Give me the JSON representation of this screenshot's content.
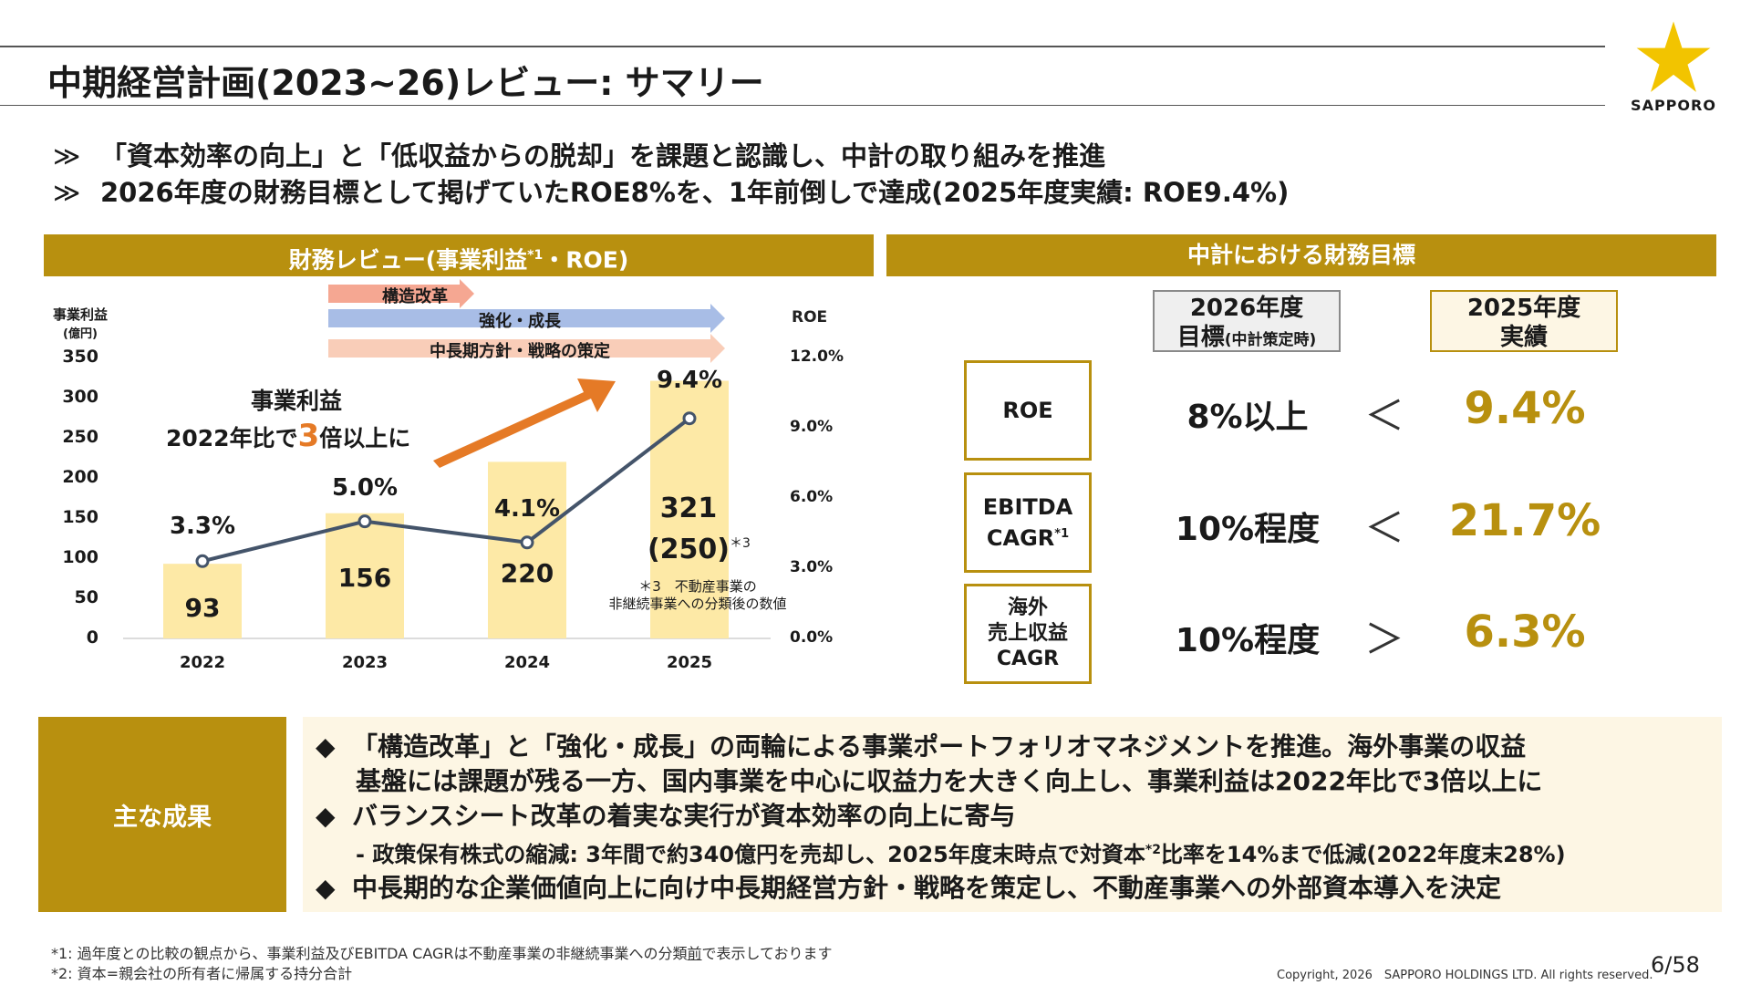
{
  "title": "中期経営計画(2023~26)レビュー: サマリー",
  "logo": {
    "text": "SAPPORO",
    "star_color": "#f2c400"
  },
  "bullets": [
    {
      "mark": "≫",
      "text": "「資本効率の向上」と「低収益からの脱却」を課題と認識し、中計の取り組みを推進"
    },
    {
      "mark": "≫",
      "text": "2026年度の財務目標として掲げていたROE8%を、1年前倒しで達成(2025年度実績: ROE9.4%)"
    }
  ],
  "left_panel": {
    "header_main": "財務レビュー(事業利益",
    "header_sup": "*1",
    "header_tail": "・ROE)",
    "left_axis_title_1": "事業利益",
    "left_axis_title_2": "(億円)",
    "right_axis_title": "ROE",
    "arrows": [
      "構造改革",
      "強化・成長",
      "中長期方針・戦略の策定"
    ],
    "callout_line1": "事業利益",
    "callout_pre": "2022年比で",
    "callout_num": "3",
    "callout_post": "倍以上に",
    "bar_2025_line1": "321",
    "bar_2025_line2": "(250)",
    "bar_2025_note_mark": "＊3",
    "note_line1": "＊3　不動産事業の",
    "note_line2": "非継続事業への分類後の数値"
  },
  "chart_data": {
    "type": "bar",
    "categories": [
      "2022",
      "2023",
      "2024",
      "2025"
    ],
    "series": [
      {
        "name": "事業利益",
        "values": [
          93,
          156,
          220,
          321
        ]
      },
      {
        "name": "ROE",
        "values": [
          3.3,
          5.0,
          4.1,
          9.4
        ]
      }
    ],
    "ylabel": "事業利益 (億円)",
    "y2label": "ROE",
    "ylim": [
      0,
      350
    ],
    "y_ticks": [
      "350",
      "300",
      "250",
      "200",
      "150",
      "100",
      "50",
      "0"
    ],
    "y2lim": [
      0,
      12
    ],
    "y2_ticks": [
      "12.0%",
      "9.0%",
      "6.0%",
      "3.0%",
      "0.0%"
    ],
    "bar_labels": [
      "93",
      "156",
      "220"
    ],
    "roe_labels": [
      "3.3%",
      "5.0%",
      "4.1%",
      "9.4%"
    ],
    "colors": {
      "bar": "#fde9a6",
      "line": "#44546a"
    }
  },
  "right_panel": {
    "header": "中計における財務目標",
    "col1_line1": "2026年度",
    "col1_line2_main": "目標",
    "col1_line2_small": "(中計策定時)",
    "col2_line1": "2025年度",
    "col2_line2": "実績",
    "rows": [
      {
        "metric_l1": "ROE",
        "metric_l2": "",
        "metric_l3": "",
        "target": "8%以上",
        "compare": "＜",
        "actual": "9.4%"
      },
      {
        "metric_l1": "EBITDA",
        "metric_l2": "CAGR",
        "metric_sup": "*1",
        "metric_l3": "",
        "target": "10%程度",
        "compare": "＜",
        "actual": "21.7%"
      },
      {
        "metric_l1": "海外",
        "metric_l2": "売上収益",
        "metric_l3": "CAGR",
        "target": "10%程度",
        "compare": "＞",
        "actual": "6.3%"
      }
    ]
  },
  "results": {
    "label": "主な成果",
    "diamond": "◆",
    "b1_l1": "「構造改革」と「強化・成長」の両輪による事業ポートフォリオマネジメントを推進。海外事業の収益",
    "b1_l2": "基盤には課題が残る一方、国内事業を中心に収益力を大きく向上し、事業利益は2022年比で3倍以上に",
    "b2_l1": "バランスシート改革の着実な実行が資本効率の向上に寄与",
    "b2_sub_pre": "- 政策保有株式の縮減: 3年間で約340億円を売却し、2025年度末時点で対資本",
    "b2_sub_sup": "*2",
    "b2_sub_post": "比率を14%まで低減(2022年度末28%)",
    "b3_l1": "中長期的な企業価値向上に向け中長期経営方針・戦略を策定し、不動産事業への外部資本導入を決定"
  },
  "footnotes": {
    "f1_pre": "*1: 過年度との比較の観点から、事業利益及びEBITDA CAGRは不動産事業の非継続事業への分類",
    "f1_u": "前",
    "f1_post": "で表示しております",
    "f2": "*2: 資本=親会社の所有者に帰属する持分合計",
    "copyright": "Copyright, 2026　SAPPORO HOLDINGS LTD.  All rights reserved.",
    "page": "6/58"
  }
}
